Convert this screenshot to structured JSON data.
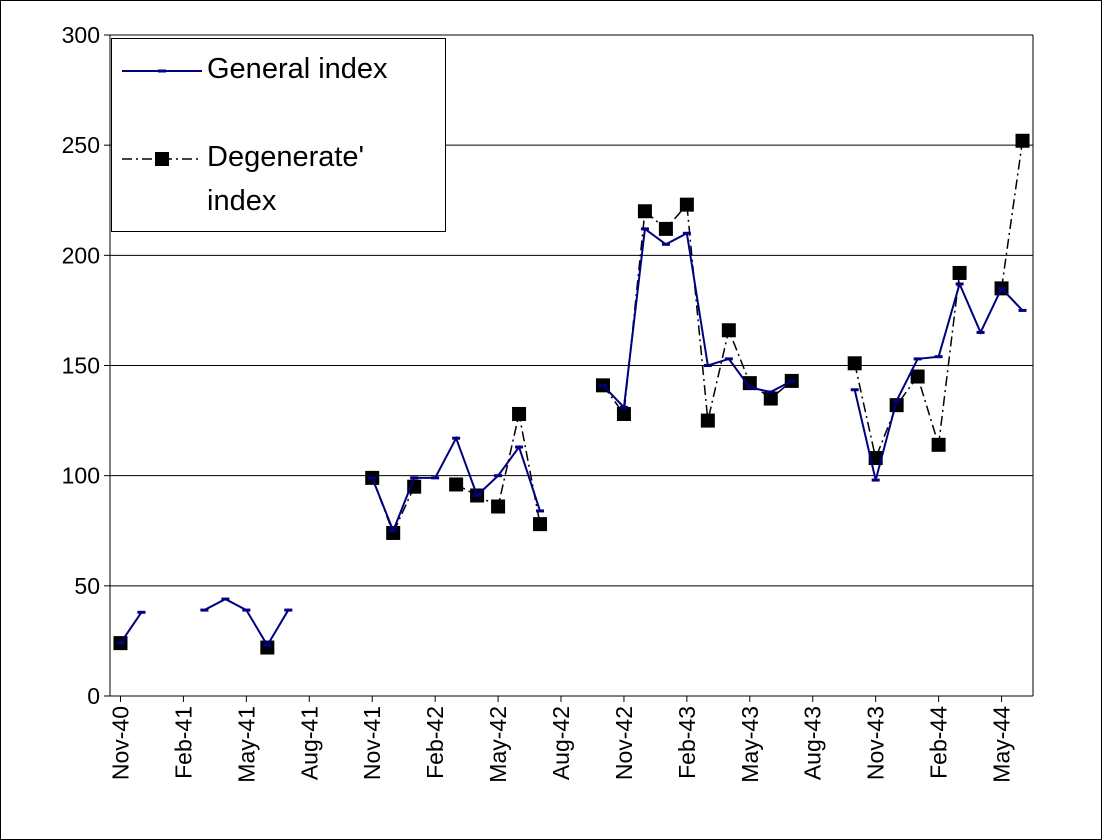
{
  "chart_data": {
    "type": "line",
    "categories": [
      "Nov-40",
      null,
      null,
      "Feb-41",
      null,
      null,
      "May-41",
      null,
      null,
      "Aug-41",
      null,
      null,
      "Nov-41",
      null,
      null,
      "Feb-42",
      null,
      null,
      "May-42",
      null,
      null,
      "Aug-42",
      null,
      null,
      "Nov-42",
      null,
      null,
      "Feb-43",
      null,
      null,
      "May-43",
      null,
      null,
      "Aug-43",
      null,
      null,
      "Nov-43",
      null,
      null,
      "Feb-44",
      null,
      null,
      "May-44",
      null
    ],
    "series": [
      {
        "name": "General index",
        "color": "#000080",
        "marker": "dash",
        "dash": "solid",
        "values": [
          24,
          38,
          null,
          null,
          39,
          44,
          39,
          23,
          39,
          null,
          null,
          null,
          99,
          75,
          99,
          99,
          117,
          91,
          100,
          113,
          84,
          null,
          null,
          141,
          131,
          212,
          205,
          210,
          150,
          153,
          140,
          138,
          143,
          null,
          null,
          139,
          98,
          134,
          153,
          154,
          187,
          165,
          185,
          175
        ]
      },
      {
        "name": "Degenerate' index",
        "color": "#000000",
        "marker": "square",
        "dash": "dashdot",
        "values": [
          24,
          null,
          null,
          null,
          null,
          null,
          null,
          22,
          null,
          null,
          null,
          null,
          99,
          74,
          95,
          null,
          96,
          91,
          86,
          128,
          78,
          null,
          null,
          141,
          128,
          220,
          212,
          223,
          125,
          166,
          142,
          135,
          143,
          null,
          null,
          151,
          108,
          132,
          145,
          114,
          192,
          null,
          185,
          252
        ]
      }
    ],
    "ylim": [
      0,
      300
    ],
    "yticks": [
      0,
      50,
      100,
      150,
      200,
      250,
      300
    ],
    "grid": true,
    "legend": "upper left"
  }
}
